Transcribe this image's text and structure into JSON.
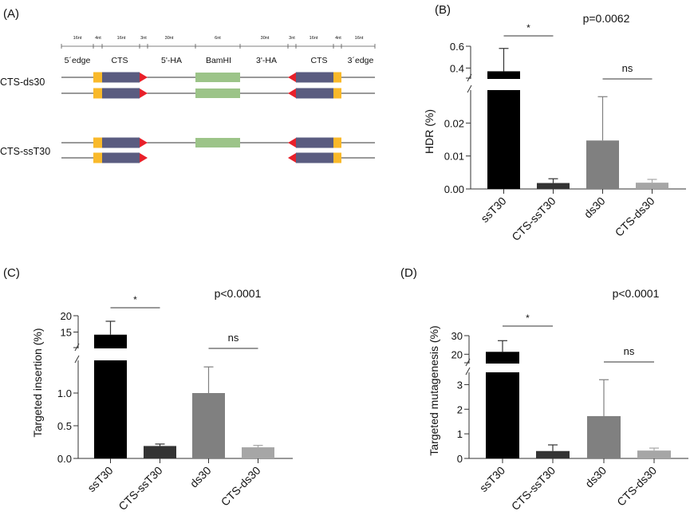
{
  "panel_a": {
    "title": "(A)",
    "ruler_labels": [
      "16nt",
      "4nt",
      "16nt",
      "3nt",
      "30nt",
      "6nt",
      "30nt",
      "3nt",
      "16nt",
      "4nt",
      "16nt"
    ],
    "section_labels": [
      "5´edge",
      "CTS",
      "5'-HA",
      "BamHI",
      "3'-HA",
      "CTS",
      "3´edge"
    ],
    "row_labels": [
      "CTS-ds30",
      "CTS-ssT30"
    ],
    "colors": {
      "pam": "#f9b92a",
      "cts": "#5a5c80",
      "arrow": "#e8202a",
      "bamhi": "#9cc488",
      "line": "#333333"
    }
  },
  "chart_data": [
    {
      "id": "B",
      "type": "bar",
      "title": "(B)",
      "ylabel": "HDR (%)",
      "xlabel": "",
      "categories": [
        "ssT30",
        "CTS-ssT30",
        "ds30",
        "CTS-ds30"
      ],
      "values": [
        0.37,
        0.0018,
        0.0147,
        0.0019
      ],
      "error_upper": [
        0.58,
        0.0031,
        0.028,
        0.0029
      ],
      "colors": [
        "#000000",
        "#333333",
        "#808080",
        "#a6a6a6"
      ],
      "ylim_lower": [
        0,
        0.03
      ],
      "ylim_upper": [
        0.3,
        0.6
      ],
      "ticks_lower": [
        "0.00",
        "0.01",
        "0.02"
      ],
      "ticks_lower_values": [
        0,
        0.01,
        0.02
      ],
      "ticks_upper": [
        "0.4",
        "0.6"
      ],
      "ticks_upper_values": [
        0.4,
        0.6
      ],
      "axis_break": true,
      "p_value": "p=0.0062",
      "significance": [
        {
          "label": "*",
          "from": 0,
          "to": 1
        },
        {
          "label": "ns",
          "from": 2,
          "to": 3
        }
      ]
    },
    {
      "id": "C",
      "type": "bar",
      "title": "(C)",
      "ylabel": "Targeted insertion (%)",
      "xlabel": "",
      "categories": [
        "ssT30",
        "CTS-ssT30",
        "ds30",
        "CTS-ds30"
      ],
      "values": [
        14.2,
        0.19,
        1.0,
        0.17
      ],
      "error_upper": [
        18.3,
        0.22,
        1.4,
        0.2
      ],
      "colors": [
        "#000000",
        "#333333",
        "#808080",
        "#a6a6a6"
      ],
      "ylim_lower": [
        0,
        1.5
      ],
      "ylim_upper": [
        10,
        20
      ],
      "ticks_lower": [
        "0.0",
        "0.5",
        "1.0"
      ],
      "ticks_lower_values": [
        0,
        0.5,
        1.0
      ],
      "ticks_upper": [
        "15",
        "20"
      ],
      "ticks_upper_values": [
        15,
        20
      ],
      "axis_break": true,
      "p_value": "p<0.0001",
      "significance": [
        {
          "label": "*",
          "from": 0,
          "to": 1
        },
        {
          "label": "ns",
          "from": 2,
          "to": 3
        }
      ]
    },
    {
      "id": "D",
      "type": "bar",
      "title": "(D)",
      "ylabel": "Targeted mutagenesis (%)",
      "xlabel": "",
      "categories": [
        "ssT30",
        "CTS-ssT30",
        "ds30",
        "CTS-ds30"
      ],
      "values": [
        21.3,
        0.3,
        1.72,
        0.32
      ],
      "error_upper": [
        27.3,
        0.55,
        3.2,
        0.42
      ],
      "colors": [
        "#000000",
        "#333333",
        "#808080",
        "#a6a6a6"
      ],
      "ylim_lower": [
        0,
        3.5
      ],
      "ylim_upper": [
        15,
        30
      ],
      "ticks_lower": [
        "0",
        "1",
        "2",
        "3"
      ],
      "ticks_lower_values": [
        0,
        1,
        2,
        3
      ],
      "ticks_upper": [
        "20",
        "30"
      ],
      "ticks_upper_values": [
        20,
        30
      ],
      "axis_break": true,
      "p_value": "p<0.0001",
      "significance": [
        {
          "label": "*",
          "from": 0,
          "to": 1
        },
        {
          "label": "ns",
          "from": 2,
          "to": 3
        }
      ]
    }
  ]
}
